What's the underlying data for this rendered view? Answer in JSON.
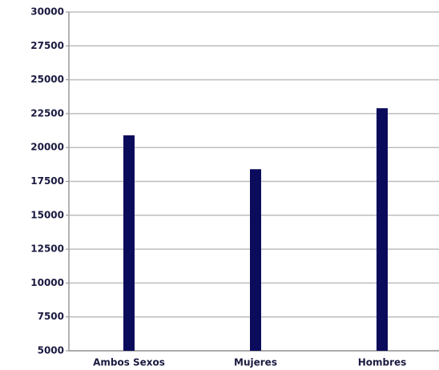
{
  "chart_data": {
    "type": "bar",
    "categories": [
      "Ambos Sexos",
      "Mujeres",
      "Hombres"
    ],
    "values": [
      20900,
      18400,
      22900
    ],
    "color": "#0b0b5c",
    "ylim": [
      5000,
      30000
    ],
    "yticks": [
      5000,
      7500,
      10000,
      12500,
      15000,
      17500,
      20000,
      22500,
      25000,
      27500,
      30000
    ],
    "grid": true
  }
}
